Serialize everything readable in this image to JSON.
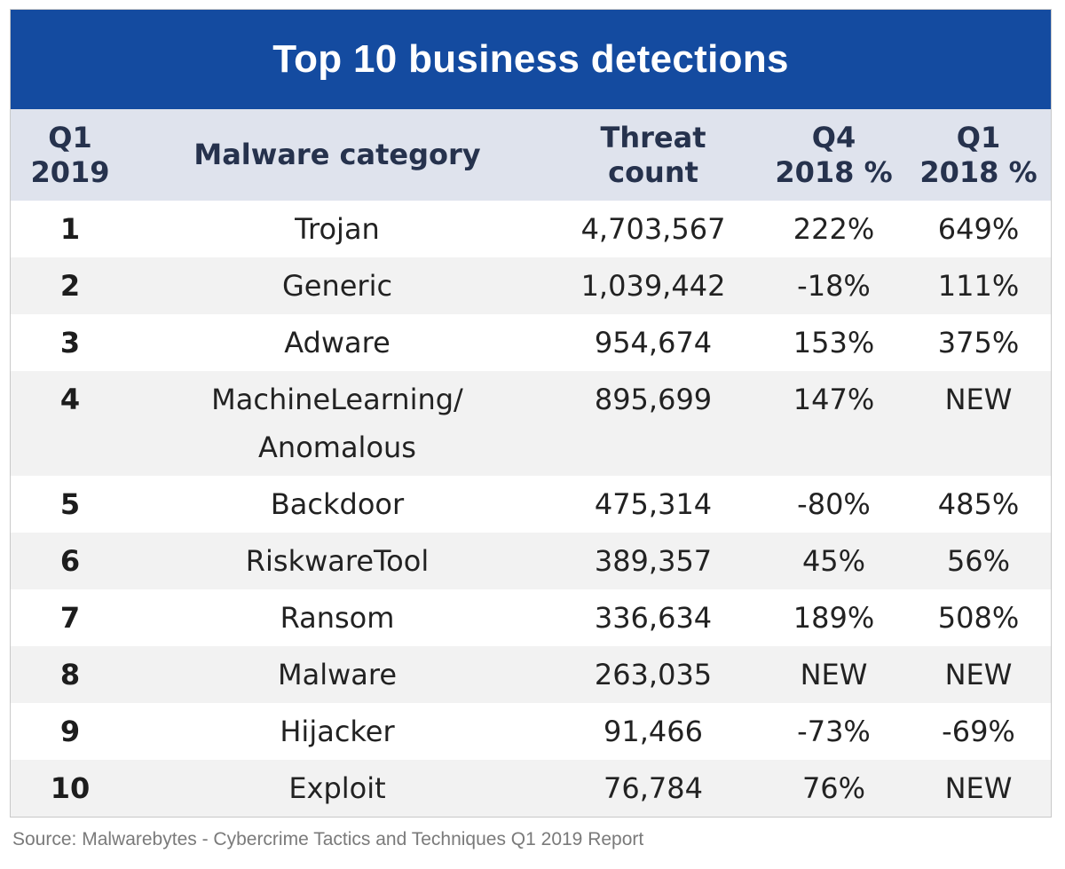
{
  "title": "Top 10 business detections",
  "headers": {
    "rank": [
      "Q1",
      "2019"
    ],
    "category": "Malware category",
    "count": [
      "Threat",
      "count"
    ],
    "q4": [
      "Q4",
      "2018 %"
    ],
    "q1": [
      "Q1",
      "2018 %"
    ]
  },
  "colors": {
    "title_bg": "#144ba0",
    "header_bg": "#dfe3ed",
    "stripe": "#f2f2f2"
  },
  "source": "Source: Malwarebytes - Cybercrime Tactics and Techniques Q1 2019 Report",
  "chart_data": {
    "type": "table",
    "title": "Top 10 business detections",
    "columns": [
      "Q1 2019",
      "Malware category",
      "Threat count",
      "Q4 2018 %",
      "Q1 2018 %"
    ],
    "rows": [
      {
        "rank": "1",
        "category": [
          "Trojan"
        ],
        "count": "4,703,567",
        "q4": "222%",
        "q1": "649%"
      },
      {
        "rank": "2",
        "category": [
          "Generic"
        ],
        "count": "1,039,442",
        "q4": "-18%",
        "q1": "111%"
      },
      {
        "rank": "3",
        "category": [
          "Adware"
        ],
        "count": "954,674",
        "q4": "153%",
        "q1": "375%"
      },
      {
        "rank": "4",
        "category": [
          "MachineLearning/",
          "Anomalous"
        ],
        "count": "895,699",
        "q4": "147%",
        "q1": "NEW"
      },
      {
        "rank": "5",
        "category": [
          "Backdoor"
        ],
        "count": "475,314",
        "q4": "-80%",
        "q1": "485%"
      },
      {
        "rank": "6",
        "category": [
          "RiskwareTool"
        ],
        "count": "389,357",
        "q4": "45%",
        "q1": "56%"
      },
      {
        "rank": "7",
        "category": [
          "Ransom"
        ],
        "count": "336,634",
        "q4": "189%",
        "q1": "508%"
      },
      {
        "rank": "8",
        "category": [
          "Malware"
        ],
        "count": "263,035",
        "q4": "NEW",
        "q1": "NEW"
      },
      {
        "rank": "9",
        "category": [
          "Hijacker"
        ],
        "count": "91,466",
        "q4": "-73%",
        "q1": "-69%"
      },
      {
        "rank": "10",
        "category": [
          "Exploit"
        ],
        "count": "76,784",
        "q4": "76%",
        "q1": "NEW"
      }
    ]
  }
}
